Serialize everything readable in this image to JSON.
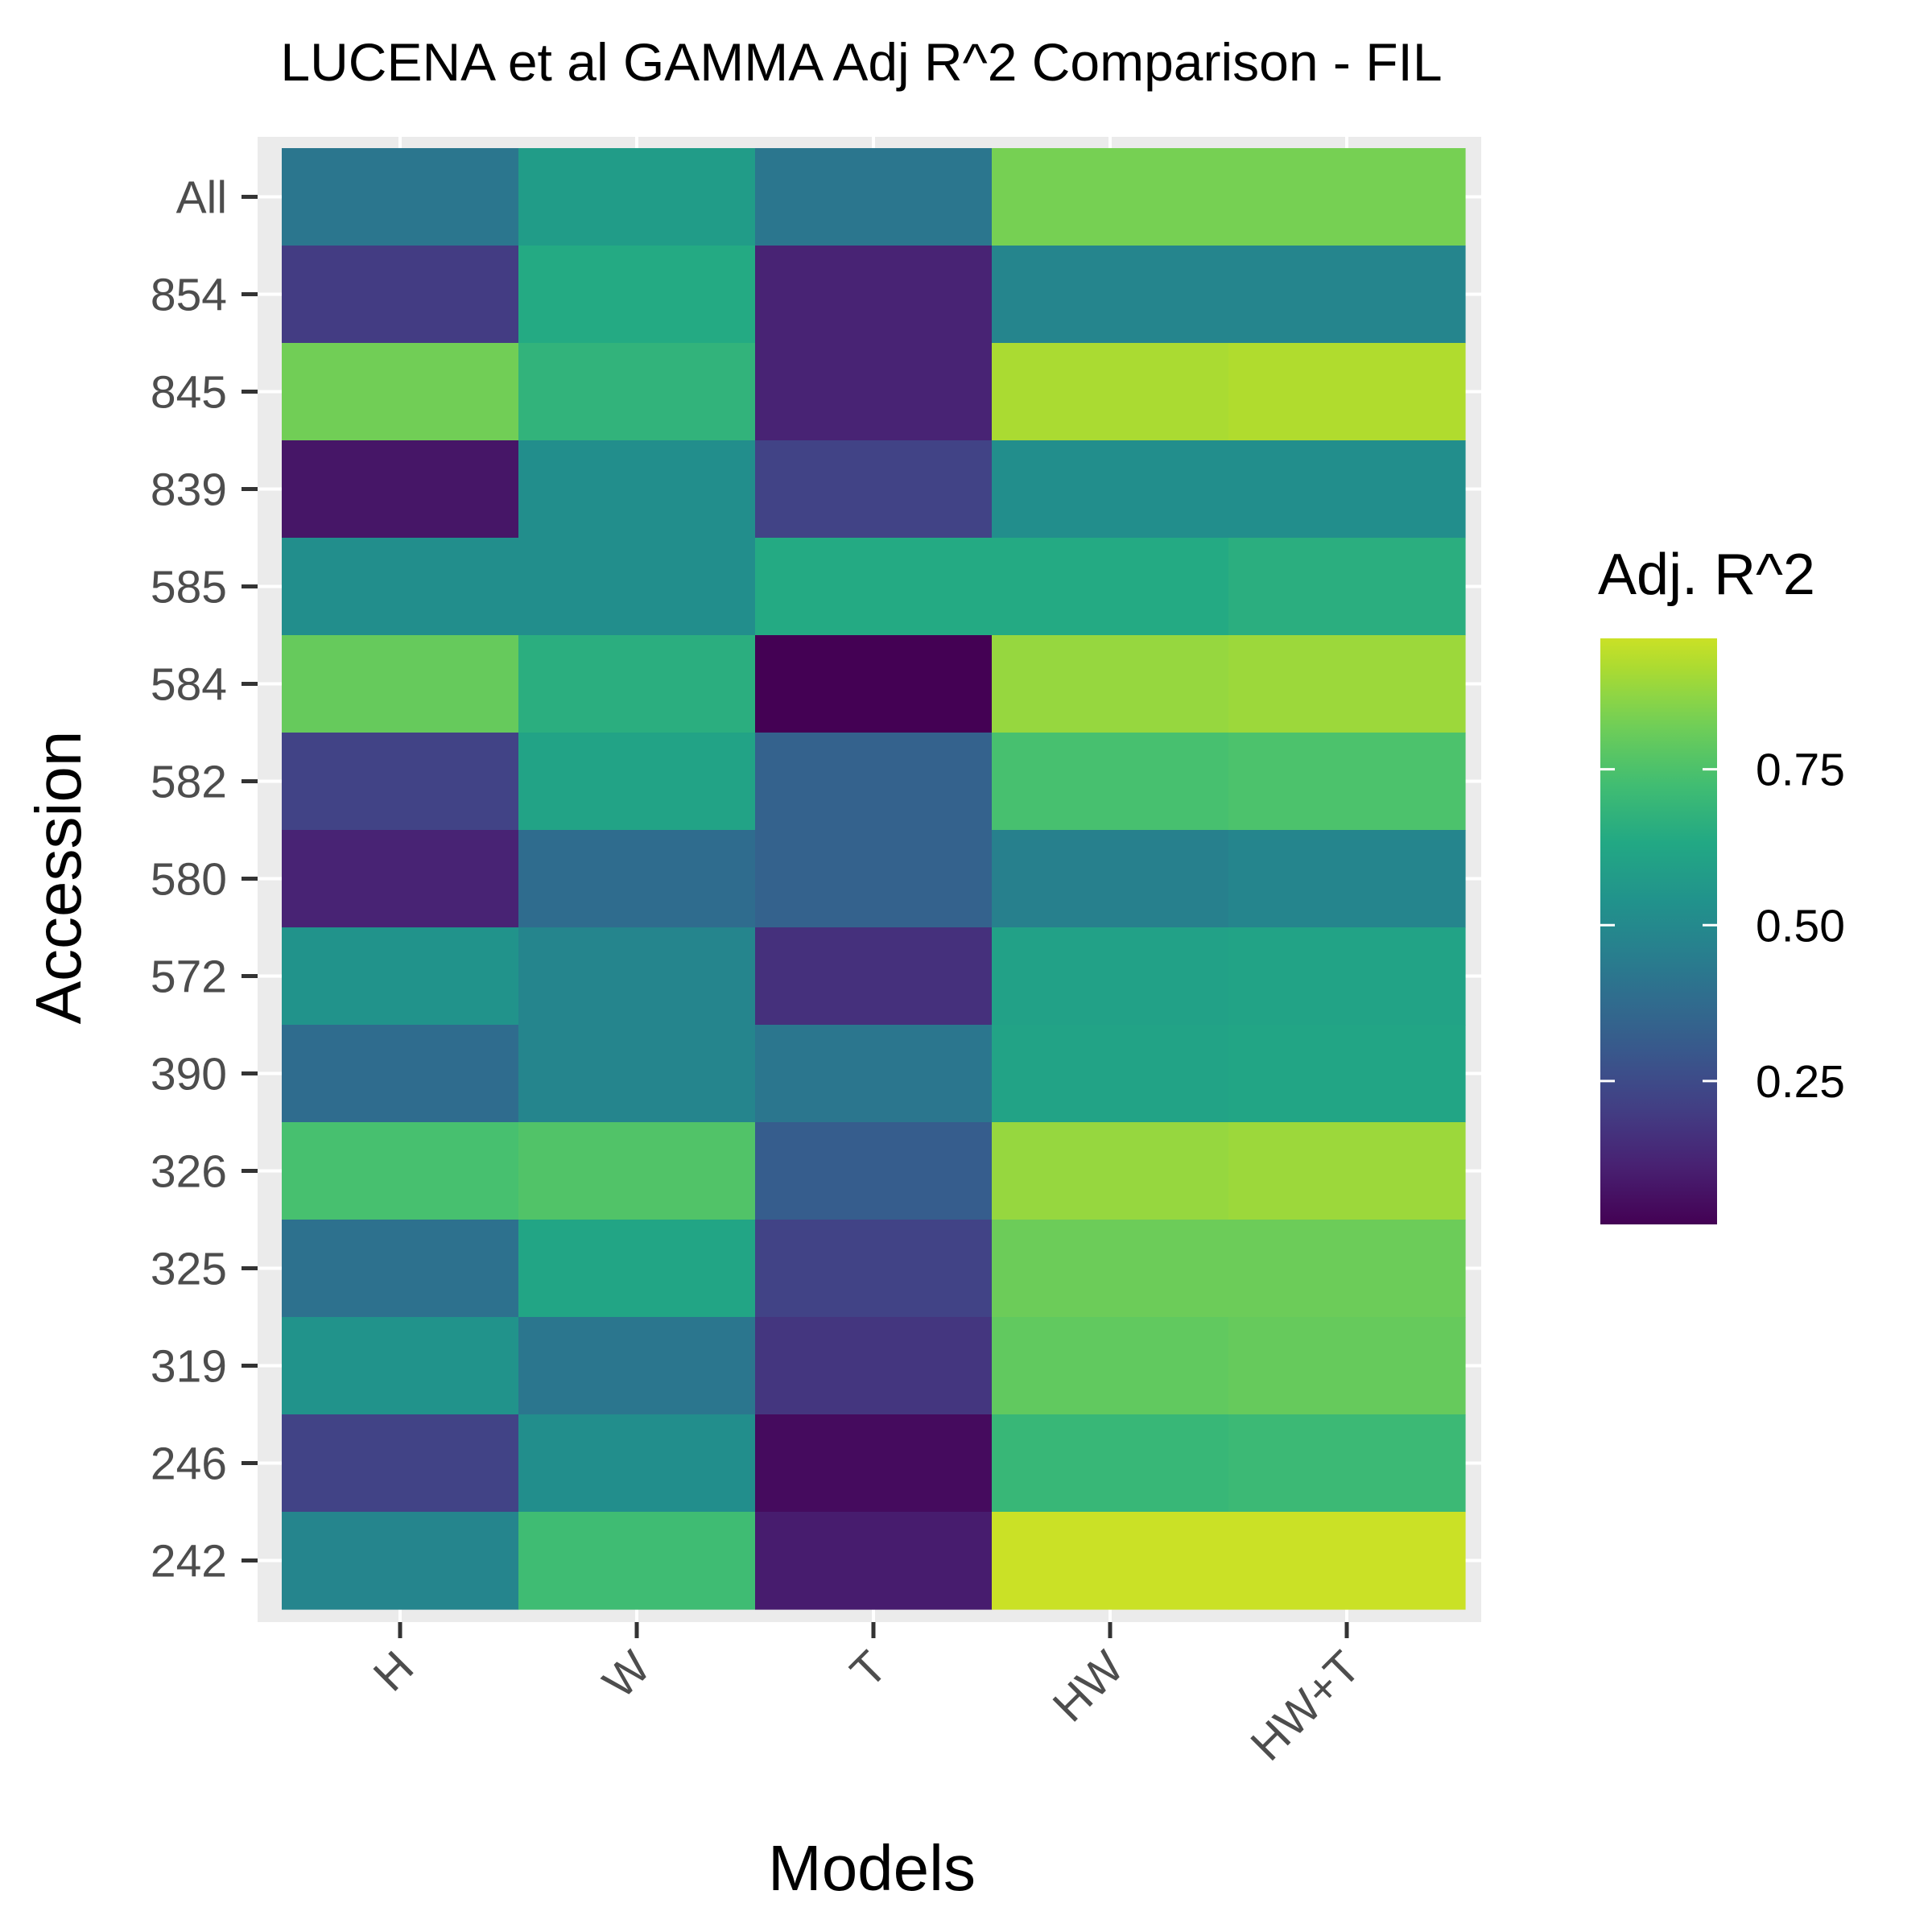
{
  "chart_data": {
    "type": "heatmap",
    "title": "LUCENA et al GAMMA Adj R^2 Comparison - FIL",
    "xlabel": "Models",
    "ylabel": "Accession",
    "x_categories": [
      "H",
      "W",
      "T",
      "HW",
      "HW+T"
    ],
    "y_categories": [
      "All",
      "854",
      "845",
      "839",
      "585",
      "584",
      "582",
      "580",
      "572",
      "390",
      "326",
      "325",
      "319",
      "246",
      "242"
    ],
    "values": [
      [
        0.42,
        0.58,
        0.42,
        0.83,
        0.83
      ],
      [
        0.2,
        0.64,
        0.12,
        0.48,
        0.48
      ],
      [
        0.82,
        0.68,
        0.12,
        0.91,
        0.92
      ],
      [
        0.08,
        0.52,
        0.22,
        0.52,
        0.52
      ],
      [
        0.52,
        0.52,
        0.64,
        0.64,
        0.66
      ],
      [
        0.8,
        0.66,
        0.02,
        0.88,
        0.89
      ],
      [
        0.22,
        0.61,
        0.34,
        0.74,
        0.75
      ],
      [
        0.12,
        0.38,
        0.34,
        0.46,
        0.48
      ],
      [
        0.54,
        0.48,
        0.16,
        0.6,
        0.61
      ],
      [
        0.38,
        0.48,
        0.42,
        0.61,
        0.62
      ],
      [
        0.74,
        0.76,
        0.32,
        0.88,
        0.89
      ],
      [
        0.4,
        0.62,
        0.22,
        0.81,
        0.81
      ],
      [
        0.54,
        0.42,
        0.18,
        0.79,
        0.8
      ],
      [
        0.22,
        0.52,
        0.05,
        0.7,
        0.71
      ],
      [
        0.48,
        0.72,
        0.1,
        0.96,
        0.96
      ]
    ],
    "colorbar": {
      "title": "Adj. R^2",
      "min": 0.02,
      "max": 0.96,
      "ticks": [
        0.25,
        0.5,
        0.75
      ],
      "tick_labels": [
        "0.25",
        "0.50",
        "0.75"
      ],
      "colormap": "viridis",
      "placement": "right"
    },
    "grid": true,
    "legend_placement": "right"
  }
}
